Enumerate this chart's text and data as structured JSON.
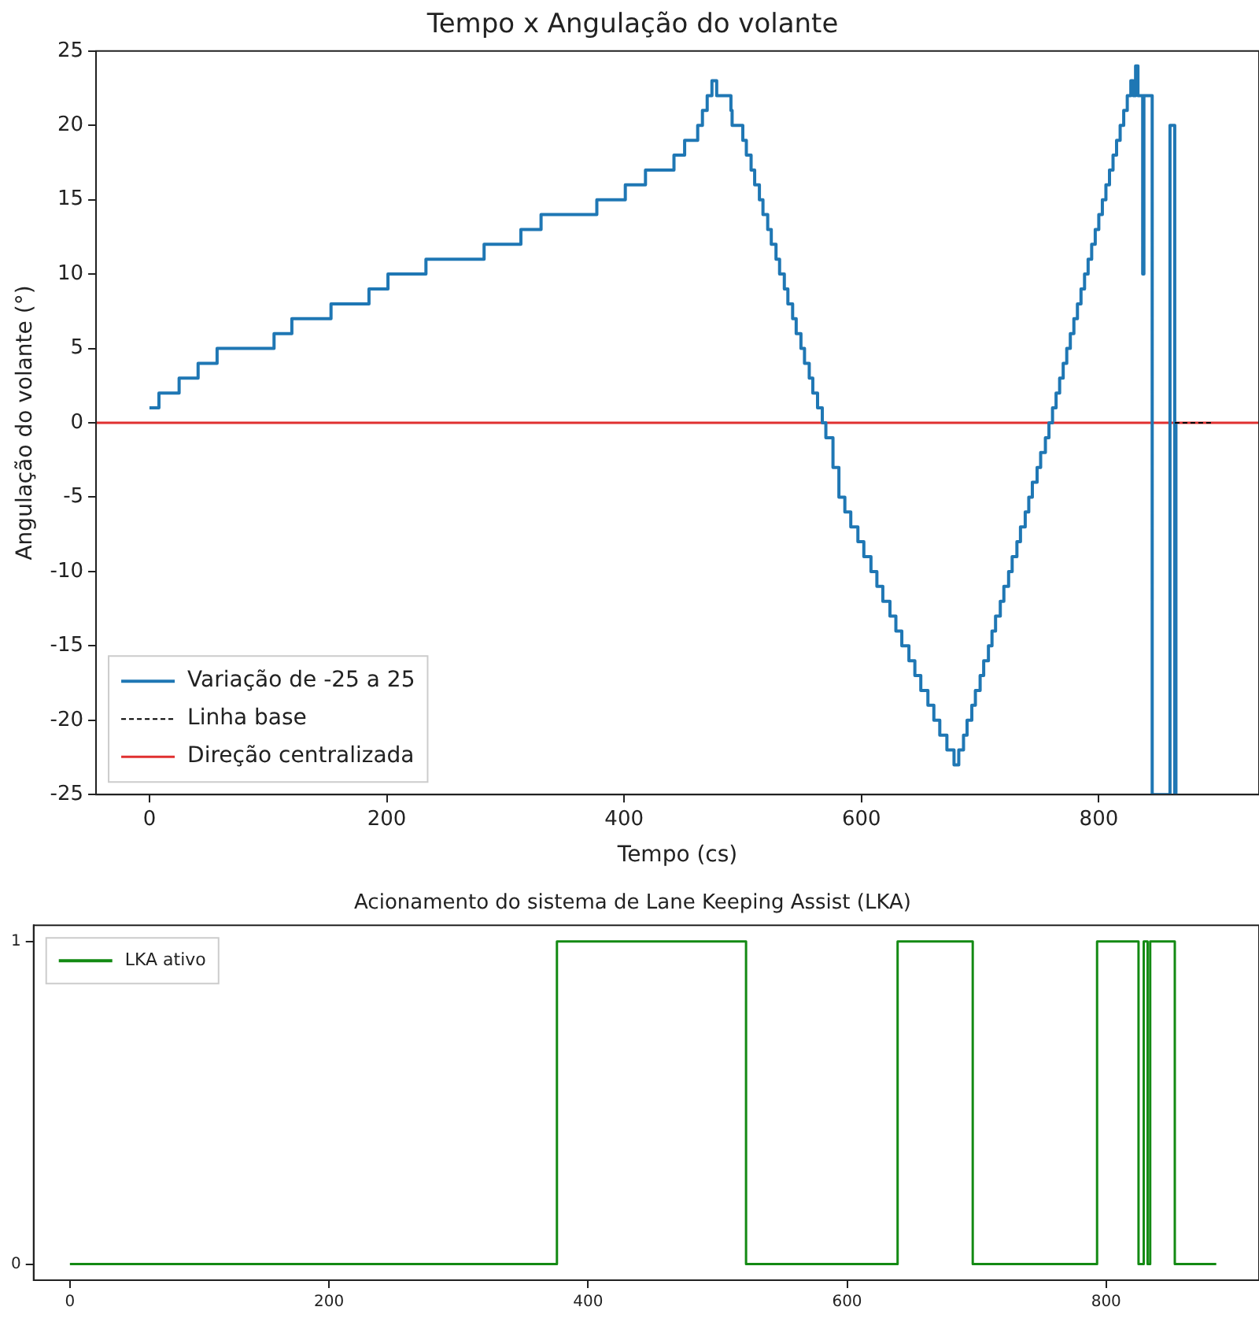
{
  "chart_data": [
    {
      "type": "step",
      "title": "Tempo x Angulação do volante",
      "xlabel": "Tempo (cs)",
      "ylabel": "Angulação do volante (°)",
      "xlim": [
        -45,
        935
      ],
      "ylim": [
        -25,
        25
      ],
      "xticks": [
        0,
        200,
        400,
        600,
        800
      ],
      "yticks": [
        -25,
        -20,
        -15,
        -10,
        -5,
        0,
        5,
        10,
        15,
        20,
        25
      ],
      "grid": false,
      "legend": "bottom left",
      "marker": "none",
      "series": [
        {
          "name": "Variação de -25 a 25",
          "color": "#1f77b4",
          "type": "step",
          "x": [
            0,
            8,
            25,
            41,
            57,
            105,
            120,
            153,
            185,
            201,
            233,
            282,
            313,
            330,
            377,
            401,
            418,
            442,
            451,
            462,
            466,
            470,
            474,
            478,
            490,
            491,
            500,
            503,
            507,
            510,
            514,
            517,
            521,
            524,
            528,
            531,
            535,
            538,
            542,
            545,
            549,
            552,
            556,
            559,
            563,
            567,
            570,
            576,
            581,
            586,
            591,
            597,
            602,
            608,
            613,
            618,
            624,
            629,
            634,
            640,
            645,
            650,
            656,
            661,
            666,
            672,
            678,
            682,
            686,
            689,
            693,
            696,
            700,
            703,
            707,
            710,
            713,
            717,
            720,
            724,
            727,
            731,
            734,
            738,
            741,
            744,
            748,
            751,
            755,
            758,
            761,
            764,
            767,
            770,
            773,
            776,
            779,
            782,
            785,
            788,
            791,
            794,
            797,
            800,
            803,
            806,
            809,
            812,
            815,
            818,
            821,
            824,
            827,
            829,
            831,
            833,
            837,
            838,
            844,
            845,
            858,
            860,
            864,
            865
          ],
          "values": [
            1,
            2,
            3,
            4,
            5,
            6,
            7,
            8,
            9,
            10,
            11,
            12,
            13,
            14,
            15,
            16,
            17,
            18,
            19,
            20,
            21,
            22,
            23,
            22,
            21,
            20,
            19,
            18,
            17,
            16,
            15,
            14,
            13,
            12,
            11,
            10,
            9,
            8,
            7,
            6,
            5,
            4,
            3,
            2,
            1,
            0,
            -1,
            -3,
            -5,
            -6,
            -7,
            -8,
            -9,
            -10,
            -11,
            -12,
            -13,
            -14,
            -15,
            -16,
            -17,
            -18,
            -19,
            -20,
            -21,
            -22,
            -23,
            -22,
            -21,
            -20,
            -19,
            -18,
            -17,
            -16,
            -15,
            -14,
            -13,
            -12,
            -11,
            -10,
            -9,
            -8,
            -7,
            -6,
            -5,
            -4,
            -3,
            -2,
            -1,
            0,
            1,
            2,
            3,
            4,
            5,
            6,
            7,
            8,
            9,
            10,
            11,
            12,
            13,
            14,
            15,
            16,
            17,
            18,
            19,
            20,
            21,
            22,
            23,
            22,
            24,
            22,
            10,
            22,
            22,
            -25,
            -25,
            20,
            -25,
            0
          ]
        },
        {
          "name": "Linha base",
          "color": "#000000",
          "type": "line",
          "line_style": "dashed",
          "x": [
            864,
            896
          ],
          "values": [
            0,
            0
          ]
        }
      ],
      "ref_lines": [
        {
          "axis": "y",
          "value": 0,
          "label": "Direção centralizada",
          "color": "#e03030"
        }
      ]
    },
    {
      "type": "step",
      "title": "Acionamento do sistema de Lane Keeping Assist (LKA)",
      "xlim": [
        -28,
        918
      ],
      "ylim": [
        -0.05,
        1.05
      ],
      "xticks": [
        0,
        200,
        400,
        600,
        800
      ],
      "yticks": [
        0,
        1
      ],
      "grid": false,
      "legend": "top left",
      "marker": "none",
      "series": [
        {
          "name": "LKA ativo",
          "color": "#138a13",
          "type": "step",
          "x": [
            0,
            376,
            522,
            639,
            697,
            793,
            825,
            829,
            832,
            834,
            853,
            885
          ],
          "values": [
            0,
            1,
            0,
            1,
            0,
            1,
            0,
            1,
            0,
            1,
            0,
            0
          ]
        }
      ]
    }
  ]
}
